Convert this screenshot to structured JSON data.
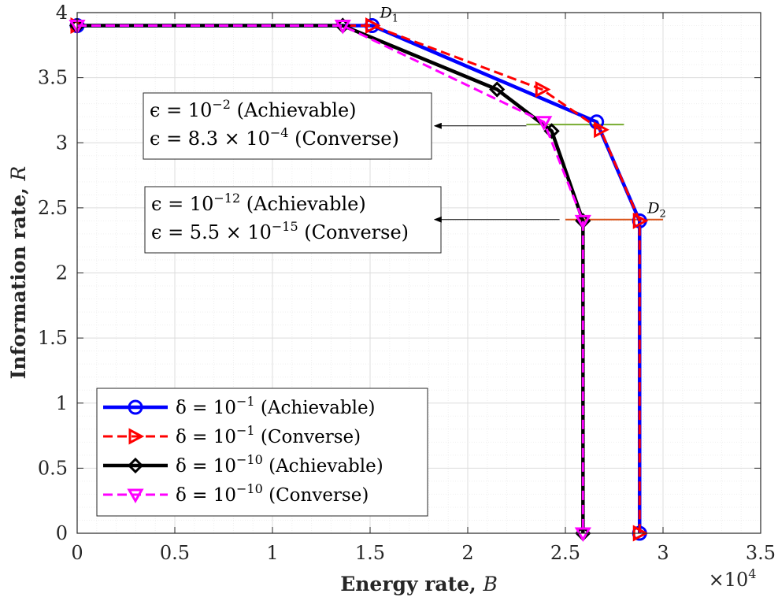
{
  "chart_data": {
    "type": "line",
    "xlabel": "Energy rate, B",
    "ylabel": "Information rate, R",
    "x_multiplier": "×10^4",
    "xlim": [
      0,
      3.5
    ],
    "ylim": [
      0,
      4
    ],
    "x_ticks": [
      "0",
      "0.5",
      "1",
      "1.5",
      "2",
      "2.5",
      "3",
      "3.5"
    ],
    "y_ticks": [
      "0",
      "0.5",
      "1",
      "1.5",
      "2",
      "2.5",
      "3",
      "3.5",
      "4"
    ],
    "grid": true,
    "minor_grid": true,
    "legend_position": "bottom-left",
    "series": [
      {
        "name": "δ = 10^-1 (Achievable)",
        "color": "#0000ff",
        "marker": "circle",
        "x": [
          0,
          1.51,
          2.66,
          2.88,
          2.88
        ],
        "y": [
          3.9,
          3.9,
          3.16,
          2.4,
          0
        ]
      },
      {
        "name": "δ = 10^-1 (Converse)",
        "color": "#ff0000",
        "marker": "triangle-right",
        "x": [
          0,
          1.51,
          2.38,
          2.68,
          2.88,
          2.88
        ],
        "y": [
          3.9,
          3.9,
          3.41,
          3.1,
          2.4,
          0
        ]
      },
      {
        "name": "δ = 10^-10 (Achievable)",
        "color": "#000000",
        "marker": "diamond",
        "x": [
          0,
          1.36,
          2.15,
          2.43,
          2.59,
          2.59
        ],
        "y": [
          3.9,
          3.9,
          3.41,
          3.09,
          2.4,
          0
        ]
      },
      {
        "name": "δ = 10^-10 (Converse)",
        "color": "#ff00ff",
        "marker": "triangle-down",
        "x": [
          0,
          1.36,
          2.39,
          2.59,
          2.59
        ],
        "y": [
          3.9,
          3.9,
          3.16,
          2.4,
          0
        ]
      }
    ],
    "reference_lines": [
      {
        "color": "#77ac30",
        "x": [
          2.3,
          2.8
        ],
        "y": [
          3.14,
          3.14
        ]
      },
      {
        "color": "#d95319",
        "x": [
          2.5,
          3.0
        ],
        "y": [
          2.41,
          2.41
        ]
      }
    ],
    "point_labels": [
      {
        "text": "D",
        "sub": "1",
        "x": 1.51,
        "y": 3.9
      },
      {
        "text": "D",
        "sub": "2",
        "x": 2.88,
        "y": 2.4
      }
    ],
    "annotations": [
      {
        "lines": [
          {
            "pre": "ϵ = 10",
            "sup": "−2",
            "post": " (Achievable)"
          },
          {
            "pre": "ϵ = 8.3 × 10",
            "sup": "−4",
            "post": " (Converse)"
          }
        ],
        "arrow_to": {
          "x": 1.83,
          "y": 3.13
        }
      },
      {
        "lines": [
          {
            "pre": "ϵ = 10",
            "sup": "−12",
            "post": " (Achievable)"
          },
          {
            "pre": "ϵ = 5.5 × 10",
            "sup": "−15",
            "post": " (Converse)"
          }
        ],
        "arrow_to": {
          "x": 1.83,
          "y": 2.41
        }
      }
    ],
    "legend": [
      {
        "pre": "δ = 10",
        "sup": "−1",
        "post": " (Achievable)"
      },
      {
        "pre": "δ = 10",
        "sup": "−1",
        "post": " (Converse)"
      },
      {
        "pre": "δ = 10",
        "sup": "−10",
        "post": " (Achievable)"
      },
      {
        "pre": "δ = 10",
        "sup": "−10",
        "post": " (Converse)"
      }
    ]
  }
}
